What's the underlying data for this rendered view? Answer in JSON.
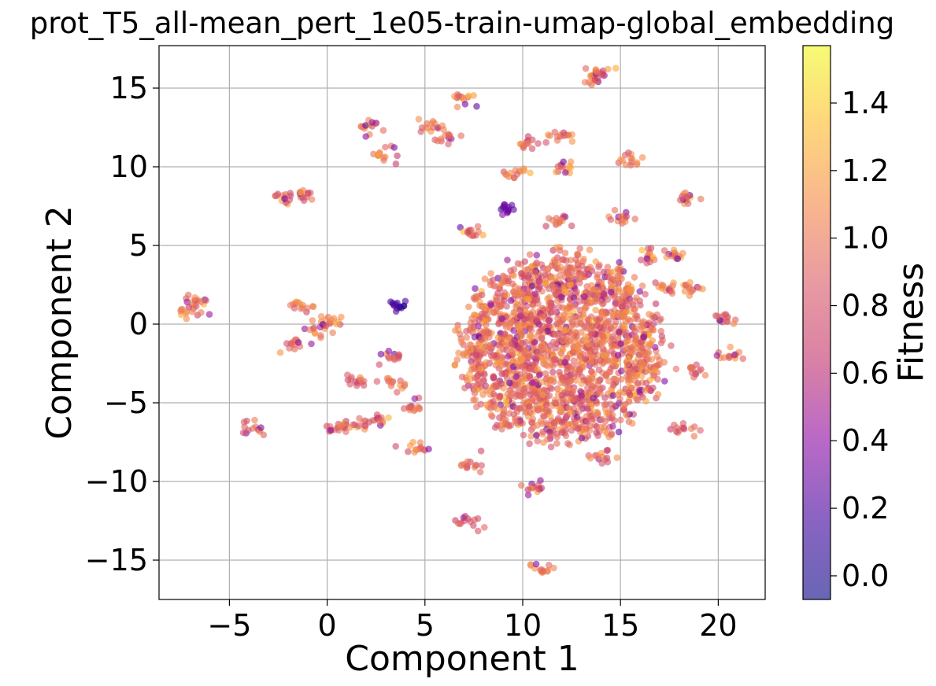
{
  "chart_data": {
    "type": "scatter",
    "title": "prot_T5_all-mean_pert_1e05-train-umap-global_embedding",
    "xlabel": "Component 1",
    "ylabel": "Component 2",
    "xlim": [
      -8.6,
      22.4
    ],
    "ylim": [
      -17.5,
      17.7
    ],
    "xticks": [
      -5,
      0,
      5,
      10,
      15,
      20
    ],
    "xtick_labels": [
      "−5",
      "0",
      "5",
      "10",
      "15",
      "20"
    ],
    "yticks": [
      -15,
      -10,
      -5,
      0,
      5,
      10,
      15
    ],
    "ytick_labels": [
      "−15",
      "−10",
      "−5",
      "0",
      "5",
      "10",
      "15"
    ],
    "grid": true,
    "colorbar": {
      "label": "Fitness",
      "range": [
        -0.07,
        1.57
      ],
      "ticks": [
        0.0,
        0.2,
        0.4,
        0.6,
        0.8,
        1.0,
        1.2,
        1.4
      ],
      "tick_labels": [
        "0.0",
        "0.2",
        "0.4",
        "0.6",
        "0.8",
        "1.0",
        "1.2",
        "1.4"
      ],
      "colormap": "plasma",
      "alpha": 0.6
    },
    "main_cluster": {
      "center": [
        12.0,
        -1.5
      ],
      "radius_x": 5.2,
      "radius_y": 6.0,
      "mean_fitness": 1.0
    },
    "clusters": [
      {
        "x": -7.0,
        "y": 0.7,
        "fitness": 1.05
      },
      {
        "x": -6.6,
        "y": 1.6,
        "fitness": 1.05
      },
      {
        "x": -3.7,
        "y": -6.6,
        "fitness": 0.95
      },
      {
        "x": -2.2,
        "y": 8.1,
        "fitness": 0.95
      },
      {
        "x": -1.3,
        "y": 8.2,
        "fitness": 0.95
      },
      {
        "x": -1.6,
        "y": -1.2,
        "fitness": 0.95
      },
      {
        "x": -1.4,
        "y": 1.1,
        "fitness": 1.0
      },
      {
        "x": -0.5,
        "y": -0.4,
        "fitness": 1.05
      },
      {
        "x": 0.3,
        "y": 0.2,
        "fitness": 1.05
      },
      {
        "x": 0.5,
        "y": -6.6,
        "fitness": 0.95
      },
      {
        "x": 1.3,
        "y": -6.4,
        "fitness": 0.95
      },
      {
        "x": 1.6,
        "y": -3.6,
        "fitness": 0.95
      },
      {
        "x": 2.3,
        "y": 12.4,
        "fitness": 1.0
      },
      {
        "x": 2.4,
        "y": -6.2,
        "fitness": 1.0
      },
      {
        "x": 3.0,
        "y": 10.8,
        "fitness": 1.0
      },
      {
        "x": 3.4,
        "y": -2.2,
        "fitness": 0.9
      },
      {
        "x": 3.6,
        "y": 1.2,
        "fitness": 0.15
      },
      {
        "x": 3.4,
        "y": -3.8,
        "fitness": 0.95
      },
      {
        "x": 4.4,
        "y": -5.3,
        "fitness": 0.95
      },
      {
        "x": 4.5,
        "y": -7.8,
        "fitness": 1.0
      },
      {
        "x": 5.1,
        "y": 12.5,
        "fitness": 1.05
      },
      {
        "x": 6.1,
        "y": 11.8,
        "fitness": 0.9
      },
      {
        "x": 6.9,
        "y": 14.4,
        "fitness": 1.0
      },
      {
        "x": 7.2,
        "y": -9.0,
        "fitness": 1.0
      },
      {
        "x": 7.2,
        "y": -12.6,
        "fitness": 0.95
      },
      {
        "x": 7.6,
        "y": 5.8,
        "fitness": 1.0
      },
      {
        "x": 9.1,
        "y": 7.3,
        "fitness": 0.3
      },
      {
        "x": 9.6,
        "y": 9.6,
        "fitness": 1.05
      },
      {
        "x": 10.3,
        "y": 11.6,
        "fitness": 0.95
      },
      {
        "x": 10.6,
        "y": -10.3,
        "fitness": 0.95
      },
      {
        "x": 11.2,
        "y": -15.6,
        "fitness": 0.95
      },
      {
        "x": 11.7,
        "y": 6.5,
        "fitness": 1.0
      },
      {
        "x": 11.9,
        "y": 11.9,
        "fitness": 1.0
      },
      {
        "x": 12.0,
        "y": 9.9,
        "fitness": 1.05
      },
      {
        "x": 13.4,
        "y": 15.7,
        "fitness": 1.0
      },
      {
        "x": 14.0,
        "y": 16.0,
        "fitness": 1.0
      },
      {
        "x": 14.1,
        "y": -8.5,
        "fitness": 1.0
      },
      {
        "x": 15.2,
        "y": 6.9,
        "fitness": 1.0
      },
      {
        "x": 15.5,
        "y": 10.4,
        "fitness": 1.0
      },
      {
        "x": 16.6,
        "y": 4.4,
        "fitness": 1.05
      },
      {
        "x": 17.4,
        "y": 2.4,
        "fitness": 1.05
      },
      {
        "x": 17.6,
        "y": 4.4,
        "fitness": 1.05
      },
      {
        "x": 18.3,
        "y": -6.7,
        "fitness": 0.95
      },
      {
        "x": 18.6,
        "y": 2.1,
        "fitness": 1.05
      },
      {
        "x": 18.5,
        "y": 8.0,
        "fitness": 1.05
      },
      {
        "x": 18.6,
        "y": -2.9,
        "fitness": 0.95
      },
      {
        "x": 20.4,
        "y": 0.4,
        "fitness": 0.95
      },
      {
        "x": 20.6,
        "y": -1.9,
        "fitness": 1.0
      }
    ]
  }
}
